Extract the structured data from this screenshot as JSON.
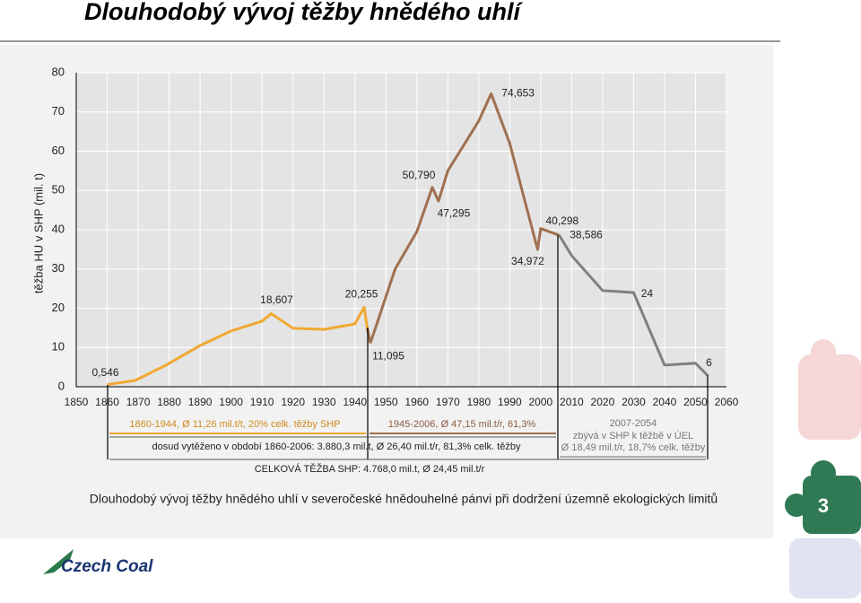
{
  "slide": {
    "title": "Dlouhodobý vývoj těžby hnědého uhlí",
    "page_number": "3",
    "logo": "Czech Coal"
  },
  "chart_data": {
    "type": "line",
    "ylabel": "těžba HU v SHP (mil. t)",
    "caption": "Dlouhodobý vývoj těžby hnědého uhlí v severočeské hnědouhelné pánvi při dodržení územně ekologických limitů",
    "xlim": [
      1850,
      2060
    ],
    "xticks": [
      1850,
      1860,
      1870,
      1880,
      1890,
      1900,
      1910,
      1920,
      1930,
      1940,
      1950,
      1960,
      1970,
      1980,
      1990,
      2000,
      2010,
      2020,
      2030,
      2040,
      2050,
      2060
    ],
    "ylim": [
      0,
      80
    ],
    "yticks": [
      0,
      10,
      20,
      30,
      40,
      50,
      60,
      70,
      80
    ],
    "grid": true,
    "series": [
      {
        "color": "#f0a830",
        "x": [
          1860,
          1869,
          1879,
          1890,
          1900,
          1910,
          1913,
          1920,
          1930,
          1940,
          1943,
          1944
        ],
        "values": [
          0.546,
          1.6,
          5.5,
          10.5,
          14.2,
          16.7,
          18.607,
          14.9,
          14.6,
          16,
          20.255,
          14.9
        ],
        "value_labels": [
          "0,546",
          null,
          null,
          null,
          null,
          null,
          "18,607",
          null,
          null,
          null,
          "20,255",
          null
        ]
      },
      {
        "color": "#a07050",
        "x": [
          1945,
          1953,
          1960,
          1965,
          1967,
          1970,
          1980,
          1984,
          1990,
          1999,
          2000,
          2006
        ],
        "values": [
          11.095,
          30,
          39.5,
          50.79,
          47.295,
          55,
          67.7,
          74.653,
          62,
          34.972,
          40.298,
          38.586
        ],
        "value_labels": [
          "11,095",
          null,
          null,
          "50,790",
          "47,295",
          null,
          null,
          "74,653",
          null,
          "34,972",
          "40,298",
          "38,586"
        ]
      },
      {
        "color": "#808080",
        "x": [
          2010,
          2020,
          2030,
          2040,
          2050,
          2054
        ],
        "values": [
          33.4,
          24.5,
          24,
          5.5,
          6,
          2.8
        ],
        "value_labels": [
          null,
          null,
          "24",
          null,
          "6",
          null
        ]
      }
    ],
    "annotations": {
      "period_1": "1860-1944, Ø 11,26 mil.t/t, 20% celk. těžby SHP",
      "period_2": "1945-2006, Ø 47,15 mil.t/r, 61,3%",
      "period_3": [
        "2007-2054",
        "zbývá v SHP k těžbě v ÚEL",
        "Ø 18,49 mil.t/r, 18,7% celk. těžby"
      ],
      "mined": "dosud vytěženo v období 1860-2006: 3.880,3 mil.t, Ø 26,40 mil.t/r, 81,3% celk. těžby",
      "total": "CELKOVÁ TĚŽBA SHP: 4.768,0 mil.t, Ø 24,45 mil.t/r"
    }
  }
}
